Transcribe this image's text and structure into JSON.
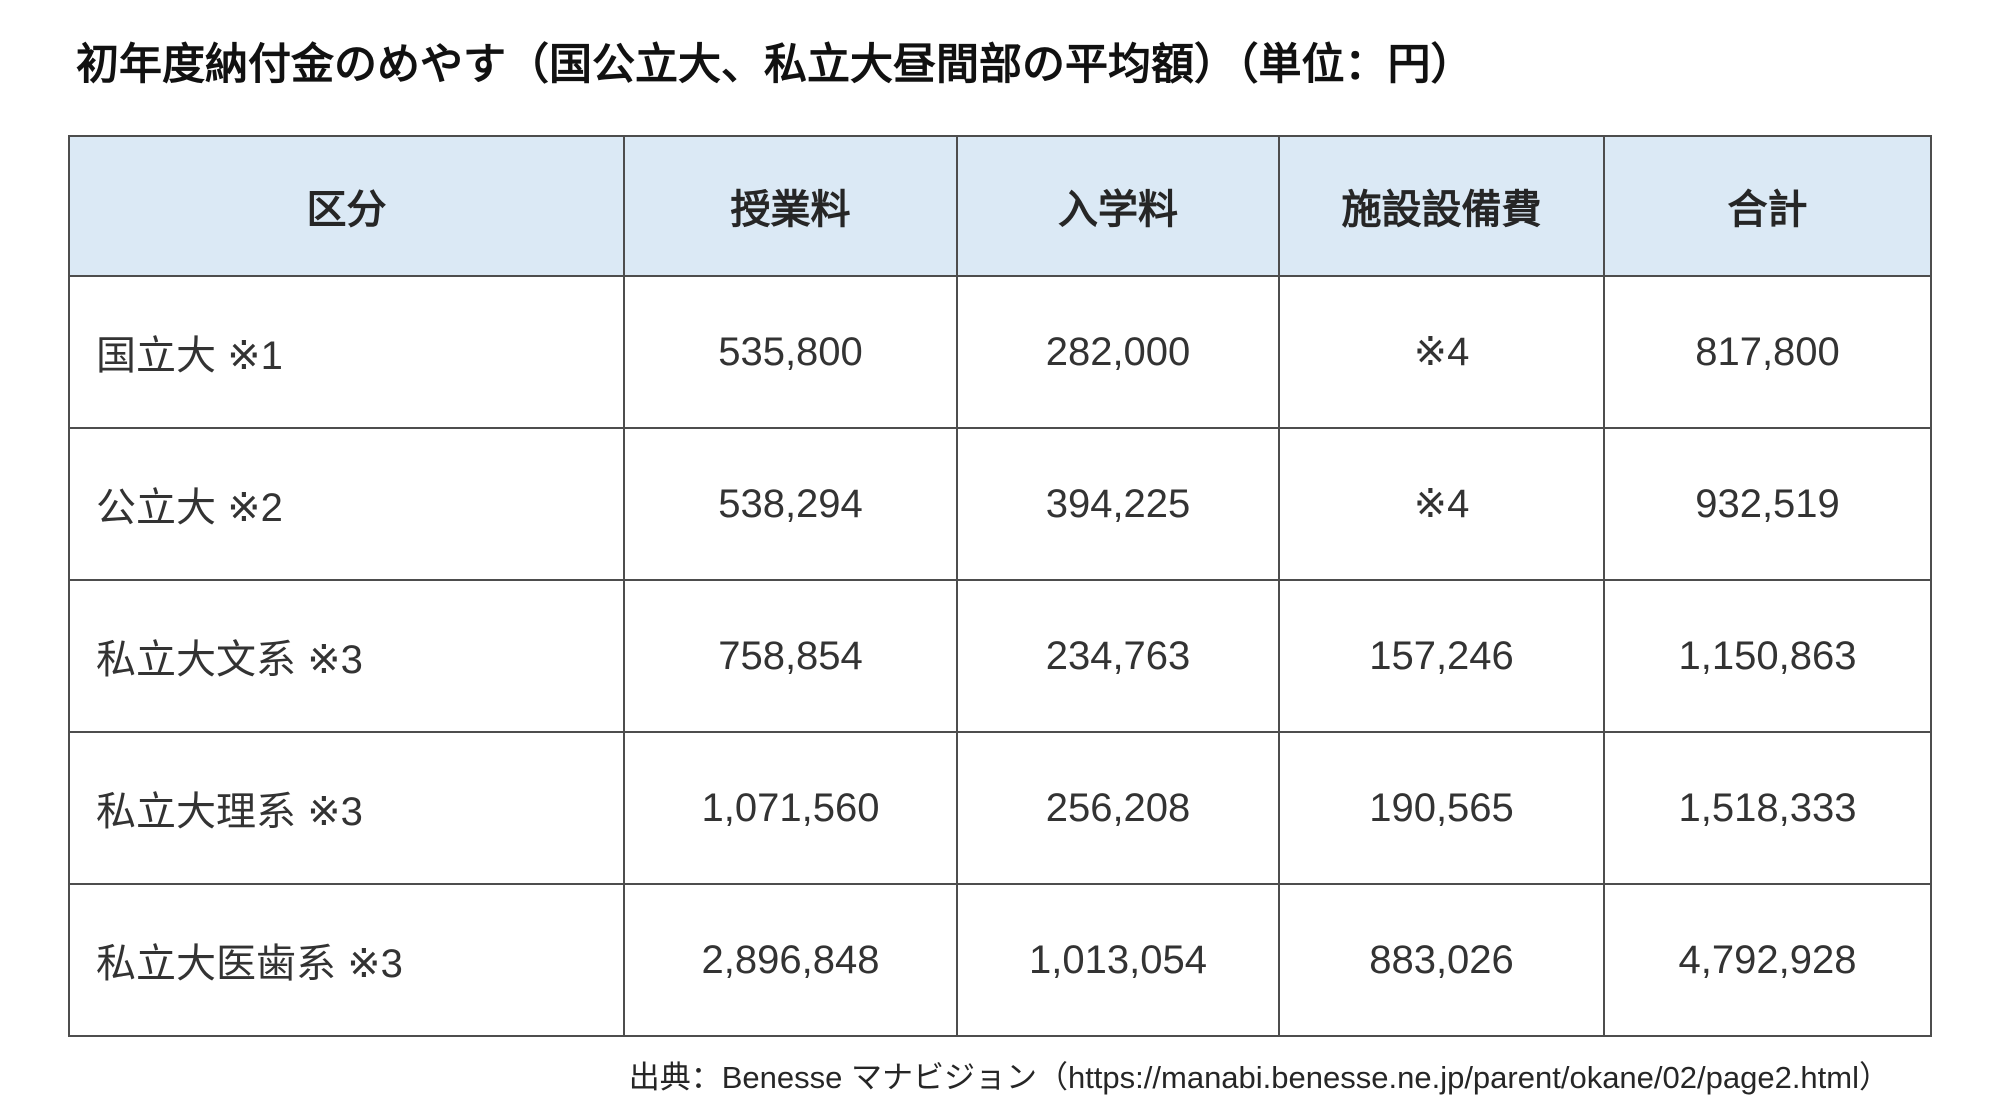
{
  "title": "初年度納付金のめやす（国公立大、私立大昼間部の平均額）（単位：円）",
  "source": "出典：Benesse マナビジョン（https://manabi.benesse.ne.jp/parent/okane/02/page2.html）",
  "colors": {
    "header_bg": "#dbe9f5",
    "border": "#4d4d4d",
    "title_text": "#111111",
    "body_text": "#333333"
  },
  "table": {
    "columns": [
      "区分",
      "授業料",
      "入学料",
      "施設設備費",
      "合計"
    ],
    "rows": [
      [
        "国立大 ※1",
        "535,800",
        "282,000",
        "※4",
        "817,800"
      ],
      [
        "公立大 ※2",
        "538,294",
        "394,225",
        "※4",
        "932,519"
      ],
      [
        "私立大文系 ※3",
        "758,854",
        "234,763",
        "157,246",
        "1,150,863"
      ],
      [
        "私立大理系 ※3",
        "1,071,560",
        "256,208",
        "190,565",
        "1,518,333"
      ],
      [
        "私立大医歯系 ※3",
        "2,896,848",
        "1,013,054",
        "883,026",
        "4,792,928"
      ]
    ]
  }
}
